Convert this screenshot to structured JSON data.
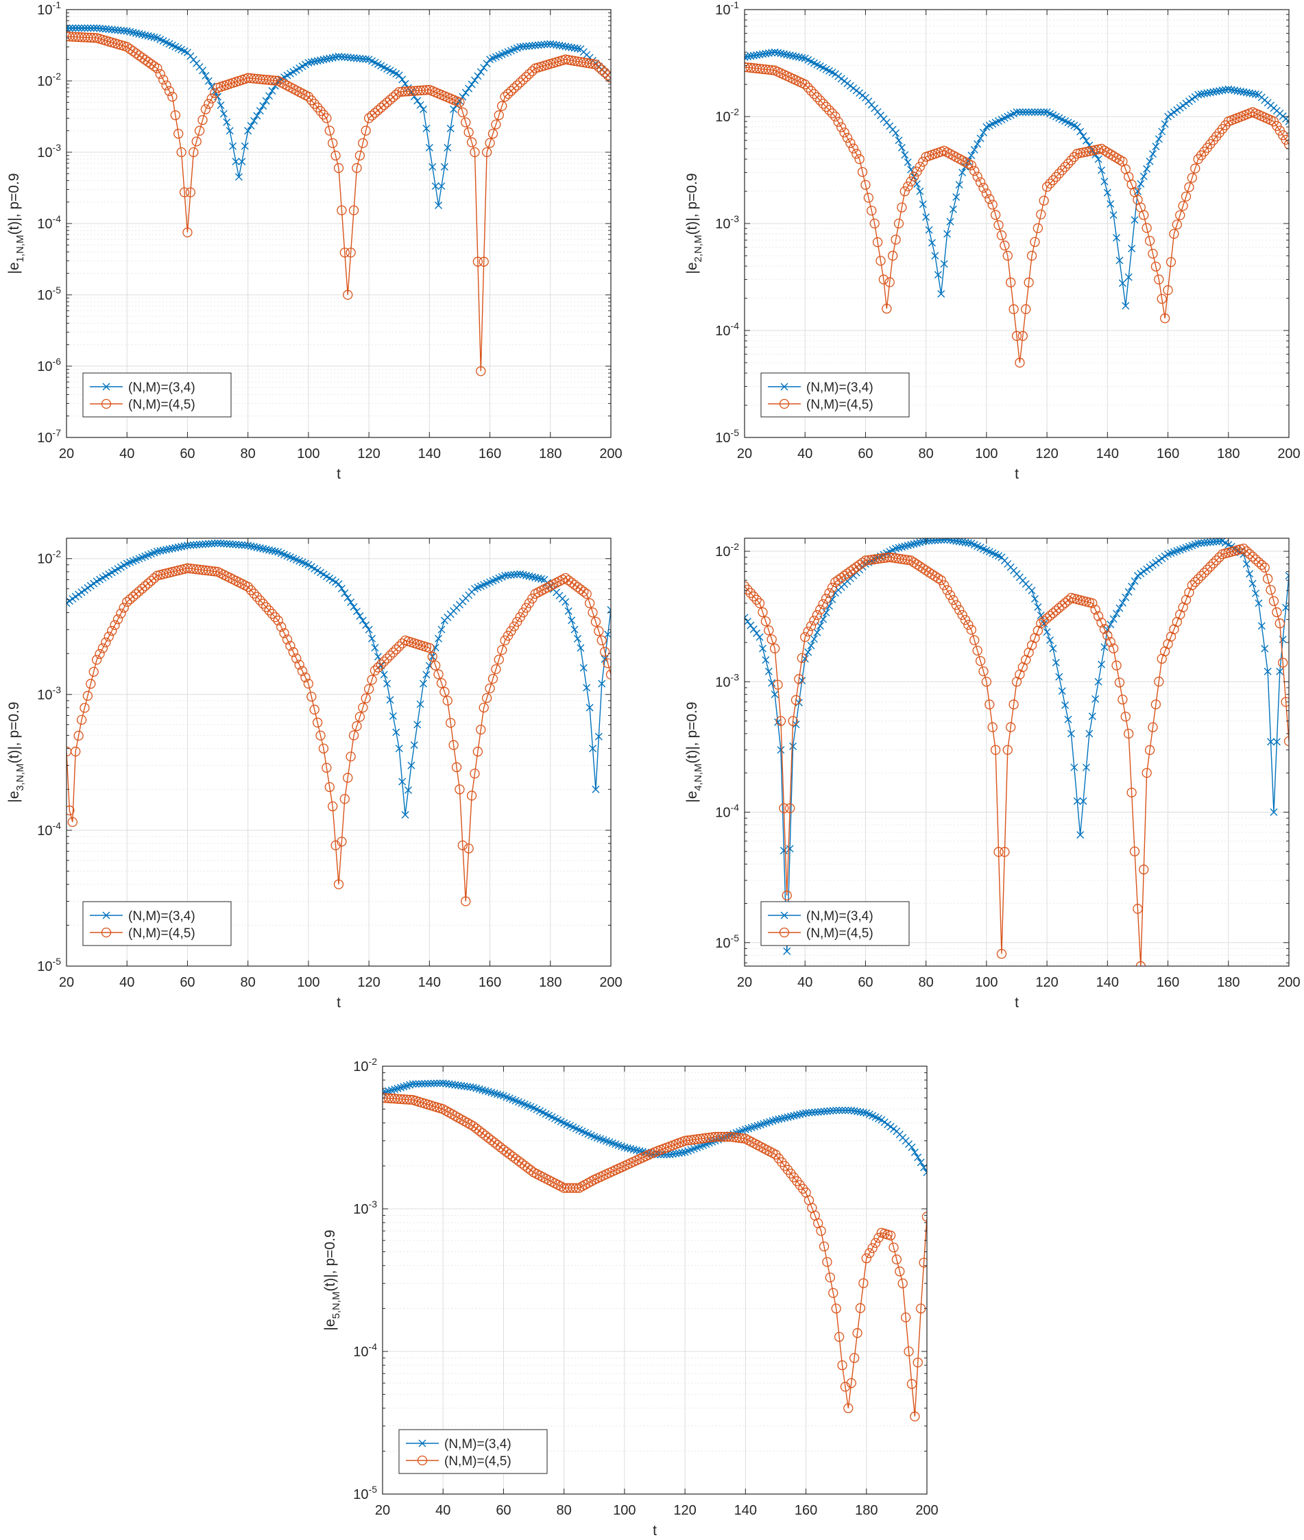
{
  "figure": {
    "series_styles": {
      "s1": {
        "color": "#0072BD",
        "marker": "x"
      },
      "s2": {
        "color": "#D95319",
        "marker": "o"
      }
    }
  },
  "chart_data": [
    {
      "type": "line",
      "x_scale": "linear",
      "y_scale": "log",
      "xlabel": "t",
      "ylabel_html": [
        "|e",
        "1,N,M",
        "(t)|, p=0.9"
      ],
      "xlim": [
        20,
        200
      ],
      "xticks": [
        20,
        40,
        60,
        80,
        100,
        120,
        140,
        160,
        180,
        200
      ],
      "ylim_exp": [
        -7,
        -1
      ],
      "ytick_exps": [
        -7,
        -6,
        -5,
        -4,
        -3,
        -2,
        -1
      ],
      "legend_position": "lower-left",
      "grid": true,
      "series": [
        {
          "name": "(N,M)=(3,4)",
          "style": "s1",
          "x": [
            20,
            30,
            40,
            50,
            60,
            65,
            70,
            74,
            77,
            80,
            90,
            100,
            110,
            120,
            130,
            138,
            143,
            148,
            160,
            170,
            180,
            190,
            200
          ],
          "values": [
            0.055,
            0.055,
            0.05,
            0.04,
            0.025,
            0.014,
            0.006,
            0.002,
            0.00045,
            0.002,
            0.01,
            0.018,
            0.022,
            0.02,
            0.012,
            0.004,
            0.00018,
            0.004,
            0.02,
            0.03,
            0.033,
            0.028,
            0.011
          ]
        },
        {
          "name": "(N,M)=(4,5)",
          "style": "s2",
          "x": [
            20,
            30,
            40,
            50,
            55,
            58,
            60,
            62,
            66,
            70,
            80,
            90,
            100,
            106,
            110,
            113,
            116,
            120,
            130,
            140,
            150,
            155,
            157,
            159,
            165,
            175,
            185,
            195,
            200
          ],
          "values": [
            0.042,
            0.04,
            0.03,
            0.015,
            0.006,
            0.001,
            7.5e-05,
            0.001,
            0.004,
            0.008,
            0.011,
            0.01,
            0.006,
            0.003,
            0.0006,
            1e-05,
            0.0006,
            0.003,
            0.007,
            0.0075,
            0.005,
            0.001,
            8.5e-07,
            0.001,
            0.006,
            0.015,
            0.02,
            0.017,
            0.011
          ]
        }
      ]
    },
    {
      "type": "line",
      "x_scale": "linear",
      "y_scale": "log",
      "xlabel": "t",
      "ylabel_html": [
        "|e",
        "2,N,M",
        "(t)|, p=0.9"
      ],
      "xlim": [
        20,
        200
      ],
      "xticks": [
        20,
        40,
        60,
        80,
        100,
        120,
        140,
        160,
        180,
        200
      ],
      "ylim_exp": [
        -5,
        -1
      ],
      "ytick_exps": [
        -5,
        -4,
        -3,
        -2,
        -1
      ],
      "legend_position": "lower-left",
      "grid": true,
      "series": [
        {
          "name": "(N,M)=(3,4)",
          "style": "s1",
          "x": [
            20,
            30,
            40,
            50,
            60,
            70,
            78,
            83,
            85,
            87,
            92,
            100,
            110,
            120,
            130,
            137,
            142,
            146,
            150,
            160,
            170,
            180,
            190,
            200
          ],
          "values": [
            0.036,
            0.04,
            0.035,
            0.025,
            0.015,
            0.007,
            0.002,
            0.0005,
            0.00022,
            0.0008,
            0.003,
            0.008,
            0.011,
            0.011,
            0.008,
            0.004,
            0.0012,
            0.00017,
            0.002,
            0.01,
            0.016,
            0.018,
            0.016,
            0.009
          ]
        },
        {
          "name": "(N,M)=(4,5)",
          "style": "s2",
          "x": [
            20,
            30,
            40,
            50,
            58,
            63,
            66,
            67,
            69,
            73,
            80,
            86,
            95,
            102,
            107,
            111,
            115,
            120,
            130,
            138,
            145,
            152,
            157,
            159,
            162,
            170,
            180,
            188,
            195,
            200
          ],
          "values": [
            0.029,
            0.027,
            0.02,
            0.01,
            0.004,
            0.001,
            0.0003,
            0.00016,
            0.0005,
            0.002,
            0.0042,
            0.0048,
            0.0035,
            0.0015,
            0.0005,
            5e-05,
            0.0005,
            0.0022,
            0.0045,
            0.005,
            0.0038,
            0.0012,
            0.0003,
            0.00013,
            0.0008,
            0.004,
            0.009,
            0.011,
            0.009,
            0.0055
          ]
        }
      ]
    },
    {
      "type": "line",
      "x_scale": "linear",
      "y_scale": "log",
      "xlabel": "t",
      "ylabel_html": [
        "|e",
        "3,N,M",
        "(t)|, p=0.9"
      ],
      "xlim": [
        20,
        200
      ],
      "xticks": [
        20,
        40,
        60,
        80,
        100,
        120,
        140,
        160,
        180,
        200
      ],
      "ylim_exp": [
        -5,
        -1.85
      ],
      "ytick_exps": [
        -5,
        -4,
        -3,
        -2
      ],
      "legend_position": "lower-left",
      "grid": true,
      "series": [
        {
          "name": "(N,M)=(3,4)",
          "style": "s1",
          "x": [
            20,
            30,
            40,
            50,
            60,
            70,
            80,
            90,
            100,
            110,
            120,
            126,
            130,
            132,
            134,
            138,
            145,
            155,
            165,
            170,
            178,
            185,
            190,
            193,
            195,
            197,
            200
          ],
          "values": [
            0.0047,
            0.0068,
            0.0092,
            0.0113,
            0.0125,
            0.013,
            0.0125,
            0.0112,
            0.009,
            0.0065,
            0.003,
            0.0012,
            0.0004,
            0.00013,
            0.0003,
            0.0012,
            0.0035,
            0.006,
            0.0075,
            0.0077,
            0.007,
            0.0048,
            0.0022,
            0.0008,
            0.0002,
            0.0012,
            0.0042
          ]
        },
        {
          "name": "(N,M)=(4,5)",
          "style": "s2",
          "x": [
            20,
            21,
            22,
            23,
            25,
            30,
            40,
            50,
            60,
            70,
            80,
            90,
            100,
            105,
            108,
            110,
            112,
            115,
            122,
            132,
            140,
            146,
            150,
            152,
            154,
            158,
            165,
            175,
            185,
            192,
            197,
            200
          ],
          "values": [
            0.00038,
            0.00014,
            0.000115,
            0.00038,
            0.00065,
            0.0018,
            0.0048,
            0.0075,
            0.0085,
            0.008,
            0.0062,
            0.0035,
            0.0012,
            0.0004,
            0.00015,
            4e-05,
            0.00017,
            0.0005,
            0.0015,
            0.0025,
            0.0022,
            0.0009,
            0.0002,
            3e-05,
            0.00018,
            0.0008,
            0.0025,
            0.0055,
            0.0072,
            0.0055,
            0.0025,
            0.0014
          ]
        }
      ]
    },
    {
      "type": "line",
      "x_scale": "linear",
      "y_scale": "log",
      "xlabel": "t",
      "ylabel_html": [
        "|e",
        "4,N,M",
        "(t)|, p=0.9"
      ],
      "xlim": [
        20,
        200
      ],
      "xticks": [
        20,
        40,
        60,
        80,
        100,
        120,
        140,
        160,
        180,
        200
      ],
      "ylim_exp": [
        -5.18,
        -1.9
      ],
      "ytick_exps": [
        -5,
        -4,
        -3,
        -2
      ],
      "legend_position": "lower-left",
      "grid": true,
      "series": [
        {
          "name": "(N,M)=(3,4)",
          "style": "s1",
          "x": [
            20,
            25,
            30,
            32,
            34,
            36,
            40,
            50,
            60,
            70,
            80,
            87,
            95,
            105,
            115,
            122,
            128,
            131,
            134,
            140,
            150,
            160,
            170,
            178,
            185,
            190,
            193,
            195,
            197,
            200
          ],
          "values": [
            0.0031,
            0.0022,
            0.0008,
            0.0003,
            8.6e-06,
            0.00032,
            0.0015,
            0.0048,
            0.008,
            0.0105,
            0.012,
            0.0123,
            0.0115,
            0.009,
            0.005,
            0.0018,
            0.0004,
            6.7e-05,
            0.0004,
            0.0025,
            0.0065,
            0.0095,
            0.0115,
            0.012,
            0.0095,
            0.004,
            0.0012,
            0.0001,
            0.0012,
            0.0065
          ]
        },
        {
          "name": "(N,M)=(4,5)",
          "style": "s2",
          "x": [
            20,
            25,
            30,
            32,
            34,
            36,
            40,
            50,
            60,
            68,
            75,
            85,
            95,
            100,
            103,
            105,
            107,
            110,
            118,
            128,
            135,
            142,
            147,
            149,
            151,
            153,
            158,
            168,
            178,
            185,
            192,
            197,
            200
          ],
          "values": [
            0.0054,
            0.004,
            0.0018,
            0.0005,
            2.3e-05,
            0.0005,
            0.0022,
            0.0058,
            0.0085,
            0.009,
            0.0085,
            0.006,
            0.0025,
            0.001,
            0.0003,
            8.2e-06,
            0.0003,
            0.001,
            0.0028,
            0.0044,
            0.004,
            0.0018,
            0.0004,
            5e-05,
            6.6e-06,
            0.0002,
            0.0015,
            0.0055,
            0.0095,
            0.0105,
            0.0075,
            0.0028,
            0.00035
          ]
        }
      ]
    },
    {
      "type": "line",
      "x_scale": "linear",
      "y_scale": "log",
      "xlabel": "t",
      "ylabel_html": [
        "|e",
        "5,N,M",
        "(t)|, p=0.9"
      ],
      "xlim": [
        20,
        200
      ],
      "xticks": [
        20,
        40,
        60,
        80,
        100,
        120,
        140,
        160,
        180,
        200
      ],
      "ylim_exp": [
        -5,
        -2
      ],
      "ytick_exps": [
        -5,
        -4,
        -3,
        -2
      ],
      "legend_position": "lower-left",
      "grid": true,
      "series": [
        {
          "name": "(N,M)=(3,4)",
          "style": "s1",
          "x": [
            20,
            30,
            40,
            50,
            60,
            70,
            80,
            90,
            100,
            110,
            115,
            120,
            130,
            140,
            150,
            160,
            170,
            175,
            180,
            185,
            190,
            195,
            200
          ],
          "values": [
            0.0065,
            0.0075,
            0.0076,
            0.0071,
            0.0062,
            0.0051,
            0.004,
            0.0032,
            0.0027,
            0.0024,
            0.0024,
            0.0025,
            0.003,
            0.0036,
            0.0042,
            0.0047,
            0.0049,
            0.0049,
            0.0047,
            0.0042,
            0.0035,
            0.0027,
            0.0018
          ]
        },
        {
          "name": "(N,M)=(4,5)",
          "style": "s2",
          "x": [
            20,
            30,
            40,
            50,
            60,
            70,
            80,
            85,
            90,
            100,
            110,
            120,
            130,
            135,
            140,
            150,
            160,
            165,
            170,
            172,
            174,
            176,
            180,
            185,
            188,
            192,
            194,
            196,
            198,
            200
          ],
          "values": [
            0.006,
            0.0058,
            0.005,
            0.0038,
            0.0026,
            0.0018,
            0.0014,
            0.0014,
            0.0016,
            0.002,
            0.0025,
            0.003,
            0.0032,
            0.0032,
            0.0031,
            0.0024,
            0.0013,
            0.0007,
            0.0002,
            8e-05,
            4e-05,
            9e-05,
            0.00045,
            0.00068,
            0.00065,
            0.0003,
            0.0001,
            3.5e-05,
            0.0002,
            0.00088
          ]
        }
      ]
    }
  ]
}
